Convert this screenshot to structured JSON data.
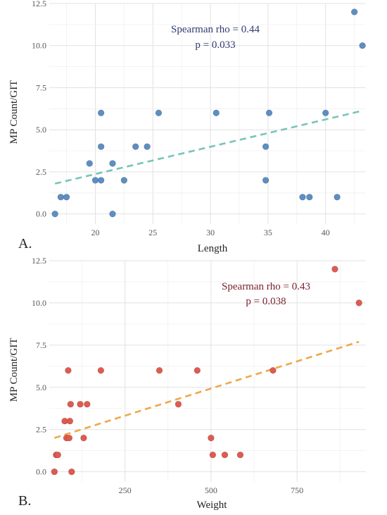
{
  "chart_data": [
    {
      "type": "scatter",
      "panel_label": "A.",
      "xlabel": "Length",
      "ylabel": "MP Count/GIT",
      "xlim": [
        16,
        43.5
      ],
      "ylim": [
        -0.6,
        12.5
      ],
      "x_ticks": [
        20,
        25,
        30,
        35,
        40
      ],
      "x_tick_labels": [
        "20",
        "25",
        "30",
        "35",
        "40"
      ],
      "y_ticks": [
        0,
        2.5,
        5,
        7.5,
        10,
        12.5
      ],
      "y_tick_labels": [
        "0.0",
        "2.5",
        "5.0",
        "7.5",
        "10.0",
        "12.5"
      ],
      "grid": true,
      "annotation": [
        "Spearman rho = 0.44",
        "p = 0.033"
      ],
      "point_color": "#5b8fc5",
      "trend_color": "#77c4b8",
      "trend_line": {
        "x": [
          16.5,
          43
        ],
        "y": [
          1.8,
          6.1
        ]
      },
      "points": [
        {
          "x": 16.5,
          "y": 0
        },
        {
          "x": 17,
          "y": 1
        },
        {
          "x": 17.5,
          "y": 1
        },
        {
          "x": 19.5,
          "y": 3
        },
        {
          "x": 20,
          "y": 2
        },
        {
          "x": 20.5,
          "y": 2
        },
        {
          "x": 20.5,
          "y": 4
        },
        {
          "x": 20.5,
          "y": 6
        },
        {
          "x": 21.5,
          "y": 3
        },
        {
          "x": 21.5,
          "y": 0
        },
        {
          "x": 22.5,
          "y": 2
        },
        {
          "x": 23.5,
          "y": 4
        },
        {
          "x": 24.5,
          "y": 4
        },
        {
          "x": 25.5,
          "y": 6
        },
        {
          "x": 30.5,
          "y": 6
        },
        {
          "x": 34.8,
          "y": 4
        },
        {
          "x": 34.8,
          "y": 2
        },
        {
          "x": 35.1,
          "y": 6
        },
        {
          "x": 38,
          "y": 1
        },
        {
          "x": 38.6,
          "y": 1
        },
        {
          "x": 40,
          "y": 6
        },
        {
          "x": 41,
          "y": 1
        },
        {
          "x": 42.5,
          "y": 12
        },
        {
          "x": 43.2,
          "y": 10
        }
      ]
    },
    {
      "type": "scatter",
      "panel_label": "B.",
      "xlabel": "Weight",
      "ylabel": "MP Count/GIT",
      "xlim": [
        30,
        950
      ],
      "ylim": [
        -0.6,
        12.5
      ],
      "x_ticks": [
        250,
        500,
        750
      ],
      "x_tick_labels": [
        "250",
        "500",
        "750"
      ],
      "y_ticks": [
        0,
        2.5,
        5,
        7.5,
        10,
        12.5
      ],
      "y_tick_labels": [
        "0.0",
        "2.5",
        "5.0",
        "7.5",
        "10.0",
        "12.5"
      ],
      "grid": true,
      "annotation": [
        "Spearman rho = 0.43",
        "p = 0.038"
      ],
      "point_color": "#e05a4f",
      "trend_color": "#eea84a",
      "trend_line": {
        "x": [
          45,
          930
        ],
        "y": [
          2.0,
          7.7
        ]
      },
      "points": [
        {
          "x": 45,
          "y": 0
        },
        {
          "x": 50,
          "y": 1
        },
        {
          "x": 55,
          "y": 1
        },
        {
          "x": 75,
          "y": 3
        },
        {
          "x": 80,
          "y": 2
        },
        {
          "x": 85,
          "y": 6
        },
        {
          "x": 88,
          "y": 2
        },
        {
          "x": 90,
          "y": 3
        },
        {
          "x": 92,
          "y": 4
        },
        {
          "x": 95,
          "y": 0
        },
        {
          "x": 120,
          "y": 4
        },
        {
          "x": 130,
          "y": 2
        },
        {
          "x": 140,
          "y": 4
        },
        {
          "x": 180,
          "y": 6
        },
        {
          "x": 350,
          "y": 6
        },
        {
          "x": 405,
          "y": 4
        },
        {
          "x": 460,
          "y": 6
        },
        {
          "x": 500,
          "y": 2
        },
        {
          "x": 505,
          "y": 1
        },
        {
          "x": 540,
          "y": 1
        },
        {
          "x": 585,
          "y": 1
        },
        {
          "x": 680,
          "y": 6
        },
        {
          "x": 860,
          "y": 12
        },
        {
          "x": 930,
          "y": 10
        }
      ]
    }
  ]
}
